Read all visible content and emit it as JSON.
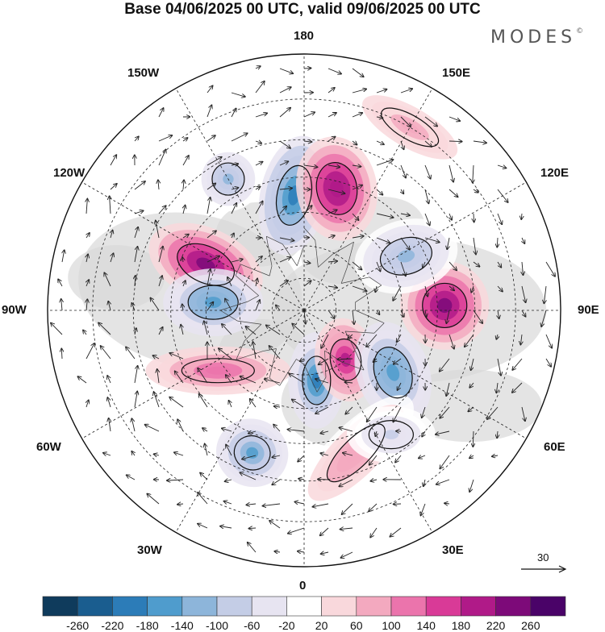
{
  "title": "Base 04/06/2025 00 UTC, valid 09/06/2025 00 UTC",
  "brand": {
    "name": "MODES",
    "mark": "©"
  },
  "longitude_labels": {
    "top": "180",
    "bottom": "0",
    "left": "90W",
    "right": "90E",
    "upper_left": "150W",
    "upper_left_mid": "120W",
    "lower_left_mid": "60W",
    "lower_left": "30W",
    "upper_right": "150E",
    "upper_right_mid": "120E",
    "lower_right_mid": "60E",
    "lower_right": "30E"
  },
  "reference_vector": {
    "value": "30"
  },
  "colorbar": {
    "labels": [
      "-260",
      "-220",
      "-180",
      "-140",
      "-100",
      "-60",
      "-20",
      "20",
      "60",
      "100",
      "140",
      "180",
      "220",
      "260"
    ],
    "colors": [
      "#0f3b5c",
      "#1a5d8f",
      "#2c7cb8",
      "#4f9ccd",
      "#8db5da",
      "#c4cde6",
      "#e7e4f1",
      "#ffffff",
      "#f9d8dc",
      "#f3a9bf",
      "#eb74ac",
      "#d93a97",
      "#b01a88",
      "#7d0a79",
      "#4a0368"
    ]
  },
  "map": {
    "projection": "north-polar-stereographic",
    "field": "geopotential height anomaly with wind vectors",
    "anomalies": [
      {
        "sign": "negative",
        "value": -200,
        "lon": -175,
        "lat": 55,
        "rx": 42,
        "ry": 75,
        "rot": 12
      },
      {
        "sign": "positive",
        "value": 220,
        "lon": 165,
        "lat": 52,
        "rx": 50,
        "ry": 65,
        "rot": -10
      },
      {
        "sign": "positive",
        "value": 250,
        "lon": -115,
        "lat": 57,
        "rx": 75,
        "ry": 45,
        "rot": 25
      },
      {
        "sign": "negative",
        "value": -160,
        "lon": -95,
        "lat": 62,
        "rx": 62,
        "ry": 42,
        "rot": 0
      },
      {
        "sign": "positive",
        "value": 240,
        "lon": 92,
        "lat": 48,
        "rx": 55,
        "ry": 55,
        "rot": 0
      },
      {
        "sign": "negative",
        "value": -180,
        "lon": 10,
        "lat": 68,
        "rx": 35,
        "ry": 60,
        "rot": 0
      },
      {
        "sign": "positive",
        "value": 200,
        "lon": 40,
        "lat": 70,
        "rx": 38,
        "ry": 52,
        "rot": -10
      },
      {
        "sign": "negative",
        "value": -160,
        "lon": 55,
        "lat": 57,
        "rx": 45,
        "ry": 65,
        "rot": -20
      },
      {
        "sign": "negative",
        "value": -150,
        "lon": -20,
        "lat": 45,
        "rx": 45,
        "ry": 42,
        "rot": 20
      },
      {
        "sign": "positive",
        "value": 140,
        "lon": -55,
        "lat": 58,
        "rx": 90,
        "ry": 30,
        "rot": 0
      },
      {
        "sign": "positive",
        "value": 100,
        "lon": 20,
        "lat": 45,
        "rx": 95,
        "ry": 35,
        "rot": -45
      },
      {
        "sign": "negative",
        "value": -100,
        "lon": 118,
        "lat": 55,
        "rx": 65,
        "ry": 45,
        "rot": -15
      },
      {
        "sign": "negative",
        "value": -120,
        "lon": -150,
        "lat": 45,
        "rx": 40,
        "ry": 40,
        "rot": 0
      },
      {
        "sign": "positive",
        "value": 80,
        "lon": 150,
        "lat": 30,
        "rx": 80,
        "ry": 30,
        "rot": 30
      },
      {
        "sign": "negative",
        "value": -60,
        "lon": 35,
        "lat": 45,
        "rx": 55,
        "ry": 35,
        "rot": 0
      }
    ],
    "latitude_circles": [
      80,
      70,
      60,
      50,
      40,
      30
    ],
    "meridians_deg": [
      0,
      30,
      60,
      90,
      120,
      150,
      180,
      210,
      240,
      270,
      300,
      330
    ],
    "land_color": "#d8d8d8",
    "graticule_color": "#222222"
  }
}
